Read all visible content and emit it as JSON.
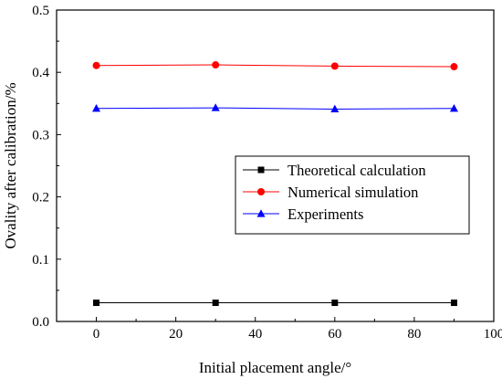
{
  "chart_data": {
    "type": "line",
    "title": "",
    "xlabel": "Initial placement angle/°",
    "ylabel": "Ovality after calibration/%",
    "xlim": [
      -10,
      100
    ],
    "ylim": [
      0.0,
      0.5
    ],
    "x_ticks": [
      "0",
      "20",
      "40",
      "60",
      "80",
      "100"
    ],
    "y_ticks": [
      "0.0",
      "0.1",
      "0.2",
      "0.3",
      "0.4",
      "0.5"
    ],
    "x": [
      0,
      30,
      60,
      90
    ],
    "grid": false,
    "legend_position": "right",
    "series": [
      {
        "name": "Theoretical calculation",
        "values": [
          0.03,
          0.03,
          0.03,
          0.03
        ],
        "color": "#000000",
        "marker": "square"
      },
      {
        "name": "Numerical simulation",
        "values": [
          0.411,
          0.412,
          0.41,
          0.409
        ],
        "color": "#ff0000",
        "line_color": "#ff0000",
        "marker": "circle"
      },
      {
        "name": "Experiments",
        "values": [
          0.342,
          0.343,
          0.341,
          0.342
        ],
        "color": "#0000ff",
        "marker": "triangle"
      }
    ]
  }
}
